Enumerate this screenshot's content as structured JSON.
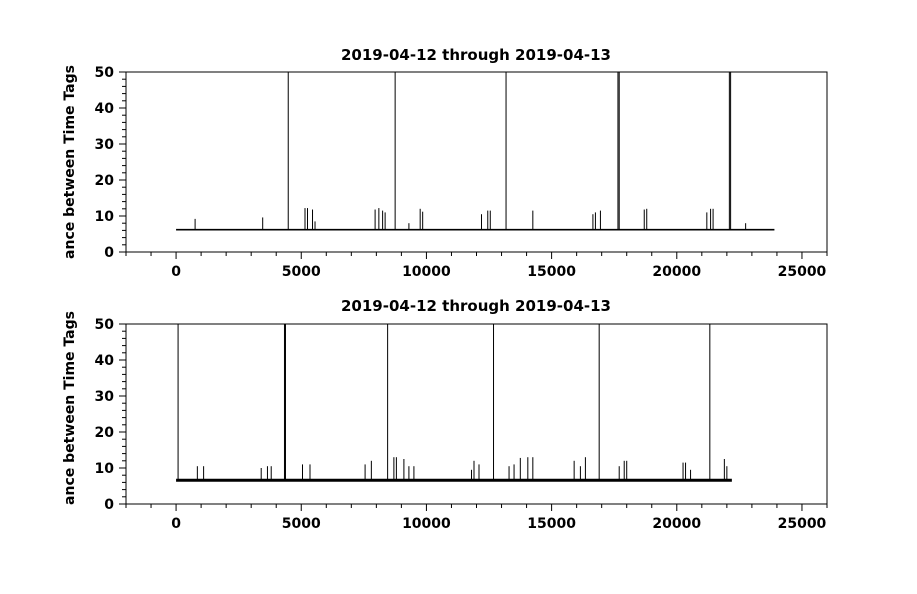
{
  "chart_data": [
    {
      "type": "line",
      "title": "2019-04-12 through 2019-04-13",
      "ylabel": "ance between Time Tags",
      "xlabel": "",
      "xlim": [
        -2000,
        26000
      ],
      "ylim": [
        0,
        50
      ],
      "xticks": [
        0,
        5000,
        10000,
        15000,
        20000,
        25000
      ],
      "yticks": [
        0,
        10,
        20,
        30,
        40,
        50
      ],
      "grid": false,
      "baseline": {
        "x_start": 0,
        "x_end": 23900,
        "y": 6.2
      },
      "series": [
        {
          "x": [
            4480,
            8750,
            13180,
            17650,
            17700,
            22100,
            22150
          ],
          "y": [
            50,
            50,
            50,
            50,
            50,
            50,
            50
          ]
        },
        {
          "x": [
            760,
            3460,
            5150,
            5250,
            5450,
            5550,
            7950,
            8100,
            8250,
            8350,
            9300,
            9750,
            9850,
            12200,
            12450,
            12550,
            14250,
            16650,
            16750,
            16950,
            18700,
            18800,
            21200,
            21350,
            21450,
            22750
          ],
          "y": [
            9.2,
            9.6,
            12.2,
            12.2,
            11.8,
            8.5,
            11.8,
            12.2,
            11.5,
            11.0,
            8.0,
            12.0,
            11.2,
            10.5,
            11.5,
            11.5,
            11.5,
            10.5,
            11.0,
            11.5,
            11.8,
            12.0,
            11.0,
            12.0,
            12.0,
            8.0
          ]
        }
      ]
    },
    {
      "type": "line",
      "title": "2019-04-12 through 2019-04-13",
      "ylabel": "ance between Time Tags",
      "xlabel": "",
      "xlim": [
        -2000,
        26000
      ],
      "ylim": [
        0,
        50
      ],
      "xticks": [
        0,
        5000,
        10000,
        15000,
        20000,
        25000
      ],
      "yticks": [
        0,
        10,
        20,
        30,
        40,
        50
      ],
      "grid": false,
      "baseline": {
        "x_start": 0,
        "x_end": 22200,
        "y": 6.6
      },
      "series": [
        {
          "x": [
            80,
            4330,
            4370,
            8450,
            12680,
            16900,
            21320
          ],
          "y": [
            50,
            50,
            50,
            50,
            50,
            50,
            50
          ]
        },
        {
          "x": [
            850,
            1100,
            3400,
            3650,
            3800,
            5050,
            5350,
            7550,
            7800,
            8700,
            8800,
            9100,
            9300,
            9500,
            11800,
            11900,
            12100,
            13300,
            13500,
            13750,
            14050,
            14250,
            15900,
            16150,
            16350,
            17700,
            17900,
            18000,
            20250,
            20350,
            20550,
            21900,
            22000
          ],
          "y": [
            10.5,
            10.5,
            10.0,
            10.5,
            10.5,
            11.0,
            11.0,
            11.0,
            12.0,
            13.0,
            13.0,
            12.5,
            10.5,
            10.5,
            9.5,
            12.0,
            11.0,
            10.5,
            11.0,
            12.8,
            13.0,
            13.0,
            12.0,
            10.5,
            13.0,
            10.5,
            12.0,
            12.0,
            11.5,
            11.5,
            9.5,
            12.5,
            10.5
          ]
        }
      ]
    }
  ]
}
